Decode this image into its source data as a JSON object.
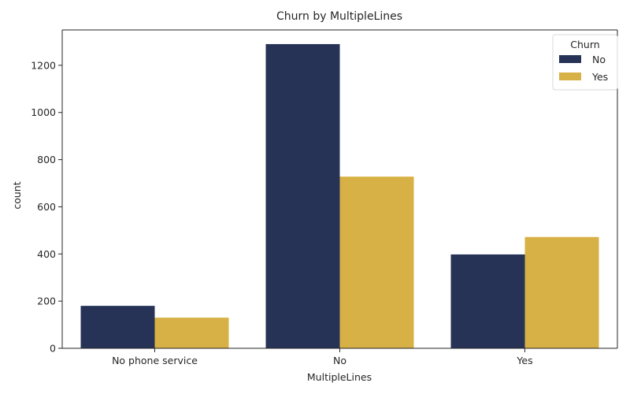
{
  "chart_data": {
    "type": "bar",
    "title": "Churn by MultipleLines",
    "xlabel": "MultipleLines",
    "ylabel": "count",
    "categories": [
      "No phone service",
      "No",
      "Yes"
    ],
    "ylim": [
      0,
      1350
    ],
    "yticks": [
      0,
      200,
      400,
      600,
      800,
      1000,
      1200
    ],
    "legend": {
      "title": "Churn",
      "placement": "top-right"
    },
    "series": [
      {
        "name": "No",
        "color": "#263357",
        "values": [
          180,
          1290,
          398
        ]
      },
      {
        "name": "Yes",
        "color": "#d8b146",
        "values": [
          130,
          728,
          472
        ]
      }
    ],
    "grid": false
  }
}
